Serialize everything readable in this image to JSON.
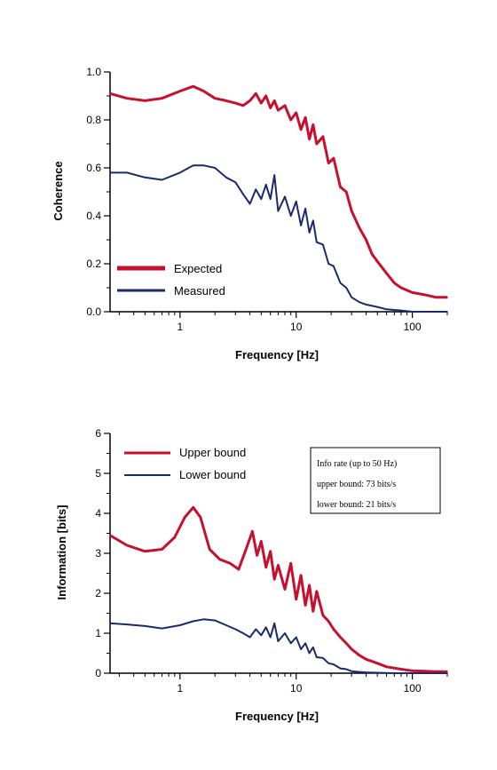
{
  "chart_data": [
    {
      "type": "line",
      "xscale": "log",
      "xlim": [
        0.25,
        200
      ],
      "ylim": [
        0,
        1.0
      ],
      "xlabel": "Frequency [Hz]",
      "ylabel": "Coherence",
      "xticklabels": [
        "1",
        "10",
        "100"
      ],
      "yticklabels": [
        "0.0",
        "0.2",
        "0.4",
        "0.6",
        "0.8",
        "1.0"
      ],
      "legend_position": "bottom-left",
      "series": [
        {
          "name": "Expected",
          "color": "#c8102e",
          "x": [
            0.25,
            0.35,
            0.5,
            0.7,
            1.0,
            1.3,
            1.6,
            2.0,
            2.5,
            3.0,
            3.5,
            4.0,
            4.5,
            5.0,
            5.5,
            6.0,
            6.5,
            7.0,
            8.0,
            9.0,
            10,
            11,
            12,
            13,
            14,
            15,
            17,
            19,
            21,
            24,
            27,
            30,
            35,
            40,
            45,
            50,
            60,
            70,
            80,
            100,
            130,
            160,
            200
          ],
          "y": [
            0.91,
            0.89,
            0.88,
            0.89,
            0.92,
            0.94,
            0.92,
            0.89,
            0.88,
            0.87,
            0.86,
            0.88,
            0.91,
            0.87,
            0.9,
            0.85,
            0.88,
            0.84,
            0.86,
            0.8,
            0.83,
            0.76,
            0.81,
            0.72,
            0.78,
            0.7,
            0.73,
            0.62,
            0.64,
            0.52,
            0.5,
            0.42,
            0.35,
            0.3,
            0.24,
            0.21,
            0.16,
            0.12,
            0.1,
            0.08,
            0.07,
            0.06,
            0.06
          ]
        },
        {
          "name": "Measured",
          "color": "#1a2a6c",
          "x": [
            0.25,
            0.35,
            0.5,
            0.7,
            1.0,
            1.3,
            1.6,
            2.0,
            2.5,
            3.0,
            3.5,
            4.0,
            4.5,
            5.0,
            5.5,
            6.0,
            6.5,
            7.0,
            8.0,
            9.0,
            10,
            11,
            12,
            13,
            14,
            15,
            17,
            19,
            21,
            24,
            27,
            30,
            35,
            40,
            50,
            60,
            80,
            100,
            150,
            200
          ],
          "y": [
            0.58,
            0.58,
            0.56,
            0.55,
            0.58,
            0.61,
            0.61,
            0.6,
            0.56,
            0.54,
            0.49,
            0.45,
            0.51,
            0.47,
            0.53,
            0.47,
            0.57,
            0.42,
            0.48,
            0.4,
            0.46,
            0.36,
            0.43,
            0.33,
            0.38,
            0.29,
            0.28,
            0.2,
            0.19,
            0.12,
            0.1,
            0.06,
            0.04,
            0.03,
            0.02,
            0.01,
            0.005,
            0.0,
            0.0,
            0.0
          ]
        }
      ]
    },
    {
      "type": "line",
      "xscale": "log",
      "xlim": [
        0.25,
        200
      ],
      "ylim": [
        0,
        6
      ],
      "xlabel": "Frequency [Hz]",
      "ylabel": "Information [bits]",
      "xticklabels": [
        "1",
        "10",
        "100"
      ],
      "yticklabels": [
        "0",
        "1",
        "2",
        "3",
        "4",
        "5",
        "6"
      ],
      "legend_position": "top-left",
      "annotation": {
        "title": "Info rate (up to 50 Hz)",
        "line1": "upper bound: 73 bits/s",
        "line2": "lower bound: 21 bits/s"
      },
      "series": [
        {
          "name": "Upper bound",
          "color": "#c8102e",
          "x": [
            0.25,
            0.35,
            0.5,
            0.7,
            0.9,
            1.1,
            1.3,
            1.5,
            1.8,
            2.2,
            2.7,
            3.2,
            3.7,
            4.2,
            4.6,
            5.0,
            5.5,
            6.0,
            6.5,
            7.0,
            8.0,
            9.0,
            10,
            11,
            12,
            13,
            14,
            15,
            17,
            19,
            21,
            24,
            27,
            30,
            35,
            40,
            50,
            60,
            80,
            100,
            130,
            160,
            200
          ],
          "y": [
            3.45,
            3.2,
            3.05,
            3.1,
            3.4,
            3.9,
            4.15,
            3.9,
            3.1,
            2.85,
            2.75,
            2.6,
            3.1,
            3.55,
            2.95,
            3.3,
            2.65,
            3.05,
            2.35,
            2.7,
            2.1,
            2.75,
            1.85,
            2.45,
            1.7,
            2.2,
            1.55,
            2.05,
            1.45,
            1.3,
            1.1,
            0.9,
            0.75,
            0.6,
            0.45,
            0.35,
            0.25,
            0.16,
            0.1,
            0.06,
            0.05,
            0.04,
            0.04
          ]
        },
        {
          "name": "Lower bound",
          "color": "#1a2a6c",
          "x": [
            0.25,
            0.35,
            0.5,
            0.7,
            1.0,
            1.3,
            1.6,
            2.0,
            2.5,
            3.0,
            3.5,
            4.0,
            4.5,
            5.0,
            5.5,
            6.0,
            6.5,
            7.0,
            8.0,
            9.0,
            10,
            11,
            12,
            13,
            14,
            15,
            17,
            19,
            21,
            24,
            27,
            30,
            35,
            40,
            50,
            70,
            100,
            150,
            200
          ],
          "y": [
            1.25,
            1.22,
            1.18,
            1.12,
            1.2,
            1.3,
            1.35,
            1.32,
            1.2,
            1.1,
            1.0,
            0.9,
            1.1,
            0.95,
            1.15,
            0.9,
            1.25,
            0.8,
            1.0,
            0.75,
            0.9,
            0.6,
            0.75,
            0.5,
            0.65,
            0.4,
            0.38,
            0.25,
            0.22,
            0.12,
            0.1,
            0.05,
            0.03,
            0.02,
            0.01,
            0.0,
            0.0,
            0.0,
            0.0
          ]
        }
      ]
    }
  ]
}
